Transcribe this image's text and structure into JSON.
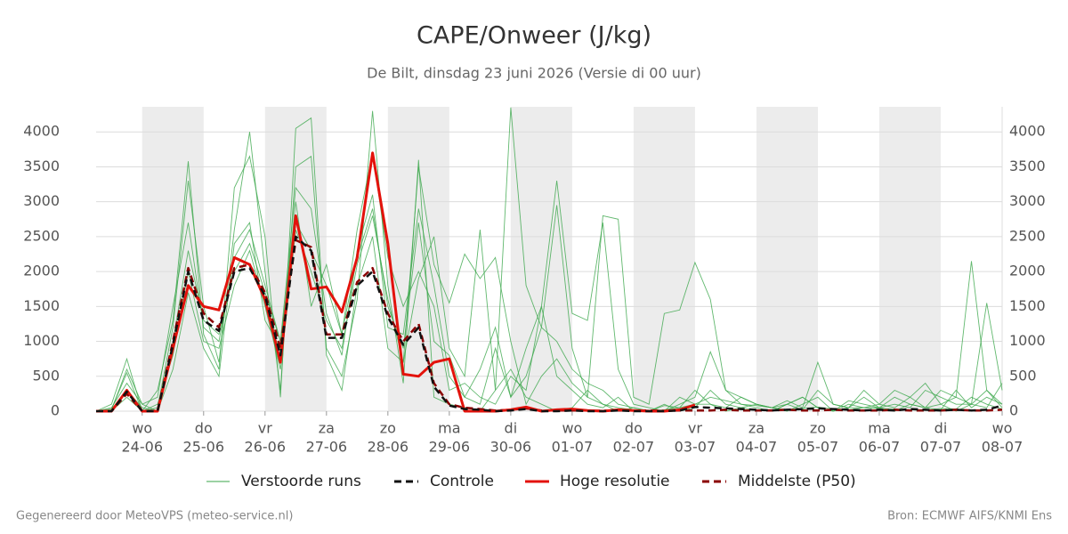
{
  "chart_data": {
    "type": "line",
    "title": "CAPE/Onweer (J/kg)",
    "subtitle": "De Bilt, dinsdag 23 juni 2026 (Versie di 00 uur)",
    "footer_left": "Gegenereerd door MeteoVPS (meteo-service.nl)",
    "footer_right": "Bron: ECMWF AIFS/KNMI Ens",
    "x": [
      -0.75,
      -0.5,
      -0.25,
      0,
      0.25,
      0.5,
      0.75,
      1,
      1.25,
      1.5,
      1.75,
      2,
      2.25,
      2.5,
      2.75,
      3,
      3.25,
      3.5,
      3.75,
      4,
      4.25,
      4.5,
      4.75,
      5,
      5.25,
      5.5,
      5.75,
      6,
      6.25,
      6.5,
      6.75,
      7,
      7.25,
      7.5,
      7.75,
      8,
      8.25,
      8.5,
      8.75,
      9,
      9.25,
      9.5,
      9.75,
      10,
      10.25,
      10.5,
      10.75,
      11,
      11.25,
      11.5,
      11.75,
      12,
      12.25,
      12.5,
      12.75,
      13,
      13.25,
      13.5,
      13.75,
      14
    ],
    "xlim": [
      -0.75,
      14
    ],
    "xticks": [
      {
        "value": 0,
        "label": "wo"
      },
      {
        "value": 1,
        "label": "do"
      },
      {
        "value": 2,
        "label": "vr"
      },
      {
        "value": 3,
        "label": "za"
      },
      {
        "value": 4,
        "label": "zo"
      },
      {
        "value": 5,
        "label": "ma"
      },
      {
        "value": 6,
        "label": "di"
      },
      {
        "value": 7,
        "label": "wo"
      },
      {
        "value": 8,
        "label": "do"
      },
      {
        "value": 9,
        "label": "vr"
      },
      {
        "value": 10,
        "label": "za"
      },
      {
        "value": 11,
        "label": "zo"
      },
      {
        "value": 12,
        "label": "ma"
      },
      {
        "value": 13,
        "label": "di"
      },
      {
        "value": 14,
        "label": "wo"
      }
    ],
    "xtick_dates": [
      "24-06",
      "25-06",
      "26-06",
      "27-06",
      "28-06",
      "29-06",
      "30-06",
      "01-07",
      "02-07",
      "03-07",
      "04-07",
      "05-07",
      "06-07",
      "07-07",
      "08-07"
    ],
    "ylim": [
      0,
      4360
    ],
    "yticks": [
      0,
      500,
      1000,
      1500,
      2000,
      2500,
      3000,
      3500,
      4000
    ],
    "grid": true,
    "ensemble": {
      "name": "Verstoorde runs",
      "color": "#3aa64a",
      "members": [
        [
          0,
          100,
          750,
          0,
          50,
          1200,
          3300,
          1500,
          700,
          2600,
          4000,
          2000,
          300,
          3500,
          3650,
          900,
          500,
          1600,
          4300,
          1800,
          400,
          3600,
          200,
          100,
          50,
          0,
          300,
          600,
          200,
          100,
          0,
          50,
          300,
          100,
          0,
          50,
          0,
          0,
          100,
          200,
          850,
          300,
          100,
          50,
          0,
          100,
          200,
          50,
          0,
          50,
          300,
          100,
          50,
          200,
          400,
          100,
          200,
          2150,
          300,
          100
        ],
        [
          0,
          50,
          400,
          100,
          200,
          1500,
          2700,
          1200,
          1000,
          2200,
          2600,
          1800,
          1000,
          3200,
          2900,
          1400,
          800,
          2300,
          3100,
          1200,
          1100,
          2900,
          1800,
          500,
          200,
          600,
          1200,
          200,
          900,
          1500,
          3300,
          1400,
          1300,
          2700,
          600,
          100,
          50,
          0,
          200,
          100,
          100,
          50,
          200,
          100,
          50,
          150,
          50,
          700,
          100,
          50,
          200,
          50,
          100,
          50,
          300,
          200,
          100,
          100,
          1550,
          300
        ],
        [
          0,
          0,
          200,
          0,
          100,
          800,
          2000,
          1000,
          900,
          1800,
          2300,
          1500,
          600,
          2600,
          2000,
          1300,
          900,
          2100,
          2800,
          1600,
          700,
          1900,
          2500,
          900,
          500,
          2600,
          300,
          4350,
          1800,
          1200,
          2950,
          900,
          200,
          100,
          50,
          20,
          0,
          80,
          50,
          300,
          100,
          0,
          50,
          20,
          0,
          100,
          200,
          50,
          0,
          150,
          100,
          50,
          0,
          100,
          50,
          20,
          300,
          50,
          200,
          100
        ],
        [
          0,
          30,
          550,
          0,
          300,
          1300,
          3580,
          1100,
          600,
          3200,
          3650,
          2500,
          200,
          4050,
          4200,
          800,
          300,
          1800,
          2500,
          900,
          700,
          3500,
          2100,
          1550,
          2250,
          1900,
          2200,
          1000,
          100,
          500,
          750,
          400,
          200,
          2800,
          2750,
          200,
          100,
          1400,
          1450,
          2130,
          1600,
          300,
          200,
          100,
          50,
          100,
          20,
          300,
          100,
          50,
          50,
          100,
          300,
          200,
          50,
          100,
          0,
          100,
          300,
          50
        ],
        [
          0,
          0,
          300,
          50,
          0,
          600,
          1700,
          900,
          500,
          2400,
          2700,
          1300,
          900,
          3000,
          1500,
          2100,
          1100,
          2600,
          3700,
          2200,
          1500,
          2000,
          1500,
          300,
          400,
          200,
          100,
          500,
          300,
          1500,
          500,
          300,
          100,
          50,
          200,
          0,
          0,
          100,
          0,
          50,
          300,
          100,
          50,
          100,
          50,
          0,
          100,
          200,
          0,
          100,
          50,
          50,
          200,
          100,
          50,
          300,
          200,
          100,
          50,
          400
        ],
        [
          0,
          20,
          600,
          100,
          0,
          1000,
          2300,
          1300,
          1100,
          2000,
          2400,
          1700,
          1000,
          2700,
          2300,
          1800,
          1100,
          2200,
          2900,
          1500,
          900,
          2700,
          1000,
          800,
          200,
          100,
          900,
          200,
          500,
          1200,
          1000,
          600,
          400,
          300,
          100,
          50,
          0,
          20,
          50,
          100,
          200,
          150,
          100,
          80,
          50,
          20,
          40,
          60,
          30,
          20,
          50,
          40,
          30,
          20,
          10,
          40,
          30,
          200,
          100,
          30
        ]
      ]
    },
    "series": [
      {
        "name": "Controle",
        "color": "#111111",
        "style": "dashed",
        "values": [
          0,
          0,
          280,
          0,
          0,
          950,
          2000,
          1300,
          1150,
          2000,
          2050,
          1650,
          800,
          2500,
          2300,
          1050,
          1050,
          1800,
          2000,
          1350,
          950,
          1200,
          350,
          80,
          30,
          20,
          0,
          10,
          30,
          0,
          0,
          10,
          0,
          0,
          10,
          0,
          0,
          0,
          10,
          60,
          50,
          40,
          30,
          20,
          10,
          20,
          30,
          40,
          30,
          20,
          10,
          20,
          10,
          30,
          20,
          10,
          20,
          10,
          20,
          80
        ]
      },
      {
        "name": "Hoge resolutie",
        "color": "#e3120b",
        "style": "solid",
        "values": [
          0,
          0,
          300,
          0,
          0,
          900,
          1800,
          1500,
          1450,
          2200,
          2100,
          1600,
          700,
          2800,
          1750,
          1780,
          1420,
          2200,
          3700,
          2400,
          530,
          500,
          700,
          750,
          0,
          0,
          0,
          20,
          60,
          0,
          20,
          30,
          10,
          0,
          20,
          10,
          0,
          0,
          20,
          90,
          null,
          null,
          null,
          null,
          null,
          null,
          null,
          null,
          null,
          null,
          null,
          null,
          null,
          null,
          null,
          null,
          null,
          null,
          null,
          null
        ]
      },
      {
        "name": "Middelste (P50)",
        "color": "#8b0000",
        "style": "dashed",
        "values": [
          0,
          0,
          250,
          0,
          0,
          1000,
          2050,
          1400,
          1200,
          2050,
          2100,
          1700,
          900,
          2450,
          2350,
          1100,
          1100,
          1850,
          2050,
          1400,
          1000,
          1250,
          400,
          100,
          50,
          30,
          10,
          20,
          40,
          10,
          10,
          10,
          10,
          5,
          10,
          10,
          10,
          5,
          10,
          10,
          10,
          20,
          10,
          10,
          10,
          20,
          10,
          10,
          20,
          10,
          10,
          10,
          20,
          10,
          10,
          10,
          20,
          10,
          10,
          20
        ]
      }
    ]
  }
}
